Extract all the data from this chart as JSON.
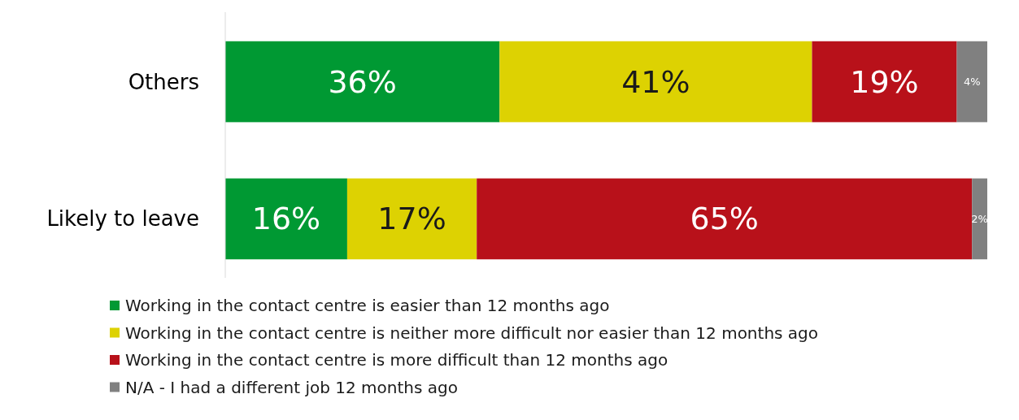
{
  "chart_data": {
    "type": "bar",
    "orientation": "horizontal",
    "stacked": true,
    "legend": "bottom",
    "categories": [
      "Others",
      "Likely to leave"
    ],
    "series": [
      {
        "name": "Working in the contact centre is easier than 12 months ago",
        "color": "#009933",
        "values": [
          36,
          16
        ],
        "value_labels": [
          "36%",
          "16%"
        ]
      },
      {
        "name": "Working in the contact centre is neither more difficult nor easier than 12 months ago",
        "color": "#ddd202",
        "values": [
          41,
          17
        ],
        "value_labels": [
          "41%",
          "17%"
        ]
      },
      {
        "name": "Working in the contact centre is more difficult than 12 months ago",
        "color": "#b8111a",
        "values": [
          19,
          65
        ],
        "value_labels": [
          "19%",
          "65%"
        ]
      },
      {
        "name": "N/A - I had a different job 12 months ago",
        "color": "#808080",
        "values": [
          4,
          2
        ],
        "value_labels": [
          "4%",
          "2%"
        ]
      }
    ]
  }
}
